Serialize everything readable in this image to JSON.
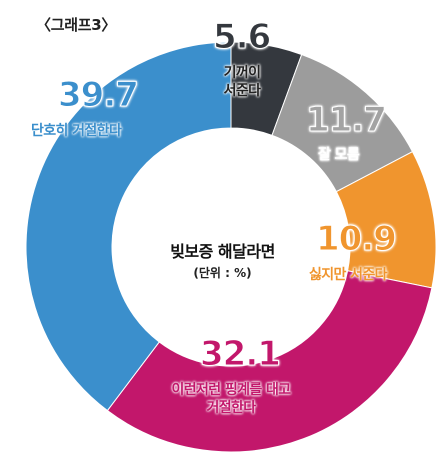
{
  "caption": "〈그래프3〉",
  "center": {
    "title": "빚보증 해달라면",
    "unit": "(단위 : %)"
  },
  "chart_data": {
    "type": "pie",
    "title": "빚보증 해달라면",
    "unit": "(단위 : %)",
    "categories": [
      "기꺼이 서준다",
      "잘 모름",
      "싫지만 서준다",
      "이런저런 핑계를 대고 거절한다",
      "단호히 거절한다"
    ],
    "values": [
      5.6,
      11.7,
      10.9,
      32.1,
      39.7
    ],
    "value_labels": [
      "5.6",
      "11.7",
      "10.9",
      "32.1",
      "39.7"
    ],
    "label_lines": [
      [
        "기꺼이",
        "서준다"
      ],
      [
        "잘 모름"
      ],
      [
        "싫지만 서준다"
      ],
      [
        "이런저런 핑계를 대고",
        "거절한다"
      ],
      [
        "단호히 거절한다"
      ]
    ],
    "colors": [
      "#34383e",
      "#9c9c9c",
      "#f0952e",
      "#c2176b",
      "#3b8fcc"
    ],
    "value_colors": [
      "#34383e",
      "#a3a3a3",
      "#f0952e",
      "#c2176b",
      "#3b8fcc"
    ],
    "label_colors": [
      "#222222",
      "#ffffff",
      "#f0952e",
      "#c2176b",
      "#3b8fcc"
    ]
  }
}
